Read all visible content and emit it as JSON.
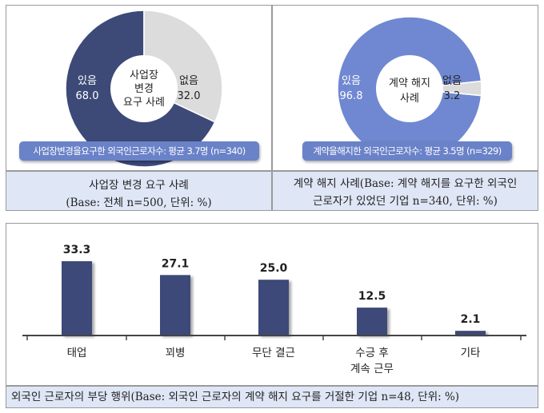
{
  "colors": {
    "navy": "#3d4a78",
    "gray": "#dcdcdc",
    "lightblue": "#6f88d1",
    "bar": "#3d4a78",
    "caption_bg": "#dfe6f6"
  },
  "left": {
    "center_label": [
      "사업장",
      "변경",
      "요구 사례"
    ],
    "badge": "사업장변경을요구한 외국인근로자수: 평균 3.7명 (n=340)",
    "caption": [
      "사업장 변경 요구 사례",
      "(Base: 전체 n=500, 단위: %)"
    ]
  },
  "right": {
    "center_label": [
      "계약 해지",
      "사례"
    ],
    "badge": "계약을해지한 외국인근로자수: 평균 3.5명 (n=329)",
    "caption": [
      "계약 해지 사례(Base: 계약 해지를 요구한 외국인",
      "근로자가 있었던 기업 n=340, 단위: %)"
    ]
  },
  "bottom": {
    "caption": "외국인 근로자의 부당 행위(Base: 외국인 근로자의 계약 해지 요구를 거절한 기업 n=48, 단위: %)"
  },
  "chart_data": [
    {
      "type": "pie",
      "categories": [
        "있음",
        "없음"
      ],
      "values": [
        68.0,
        32.0
      ]
    },
    {
      "type": "pie",
      "categories": [
        "있음",
        "없음"
      ],
      "values": [
        96.8,
        3.2
      ]
    },
    {
      "type": "bar",
      "categories": [
        [
          "태업"
        ],
        [
          "꾀병"
        ],
        [
          "무단 결근"
        ],
        [
          "수긍 후",
          "계속 근무"
        ],
        [
          "기타"
        ]
      ],
      "values": [
        33.3,
        27.1,
        25.0,
        12.5,
        2.1
      ]
    }
  ]
}
